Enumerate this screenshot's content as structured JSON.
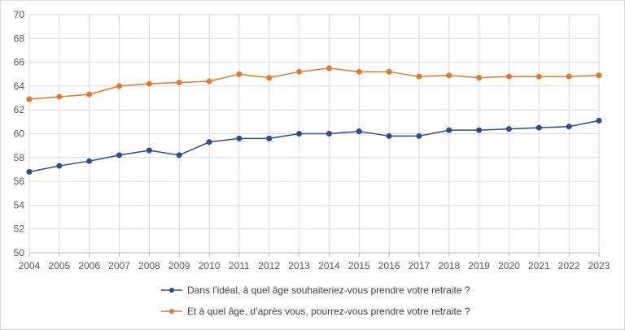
{
  "chart_data": {
    "type": "line",
    "title": "",
    "xlabel": "",
    "ylabel": "",
    "x": [
      "2004",
      "2005",
      "2006",
      "2007",
      "2008",
      "2009",
      "2010",
      "2011",
      "2012",
      "2013",
      "2014",
      "2015",
      "2016",
      "2017",
      "2018",
      "2019",
      "2020",
      "2021",
      "2022",
      "2023"
    ],
    "ylim": [
      50,
      70
    ],
    "yticks": [
      50,
      52,
      54,
      56,
      58,
      60,
      62,
      64,
      66,
      68,
      70
    ],
    "grid": true,
    "legend_position": "bottom",
    "series": [
      {
        "name": "Dans l’idéal, à quel âge souhaiteriez-vous prendre votre retraite ?",
        "color": "#2f4b8f",
        "values": [
          56.8,
          57.3,
          57.7,
          58.2,
          58.6,
          58.2,
          59.3,
          59.6,
          59.6,
          60.0,
          60.0,
          60.2,
          59.8,
          59.8,
          60.3,
          60.3,
          60.4,
          60.5,
          60.6,
          61.1
        ]
      },
      {
        "name": "Et à quel âge, d’après vous, pourrez-vous prendre votre retraite ?",
        "color": "#e07a2f",
        "values": [
          62.9,
          63.1,
          63.3,
          64.0,
          64.2,
          64.3,
          64.4,
          65.0,
          64.7,
          65.2,
          65.5,
          65.2,
          65.2,
          64.8,
          64.9,
          64.7,
          64.8,
          64.8,
          64.8,
          64.9
        ]
      }
    ]
  }
}
